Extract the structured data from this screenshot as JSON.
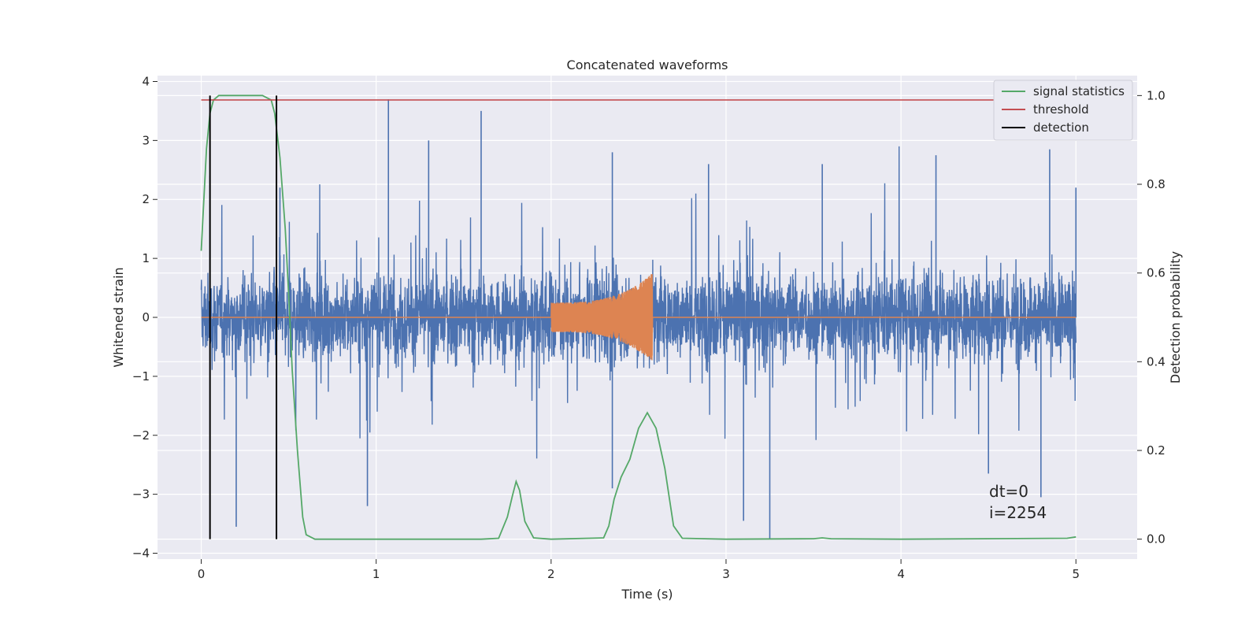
{
  "chart_data": {
    "type": "line",
    "title": "Concatenated waveforms",
    "xlabel": "Time (s)",
    "ylabel": "Whitened strain",
    "y2label": "Detection probability",
    "xlim": [
      -0.25,
      5.35
    ],
    "ylim": [
      -4.1,
      4.1
    ],
    "y2lim": [
      -0.045,
      1.045
    ],
    "xticks": [
      0,
      1,
      2,
      3,
      4,
      5
    ],
    "xtick_labels": [
      "0",
      "1",
      "2",
      "3",
      "4",
      "5"
    ],
    "yticks": [
      -4,
      -3,
      -2,
      -1,
      0,
      1,
      2,
      3,
      4
    ],
    "ytick_labels": [
      "−4",
      "−3",
      "−2",
      "−1",
      "0",
      "1",
      "2",
      "3",
      "4"
    ],
    "y2ticks": [
      0.0,
      0.2,
      0.4,
      0.6,
      0.8,
      1.0
    ],
    "y2tick_labels": [
      "0.0",
      "0.2",
      "0.4",
      "0.6",
      "0.8",
      "1.0"
    ],
    "grid": true,
    "legend_position": "top-right",
    "colors": {
      "background": "#EAEAF2",
      "grid": "#FFFFFF",
      "strain": "#4C72B0",
      "injection": "#DD8452",
      "signal_statistics": "#55A868",
      "threshold": "#C44E52",
      "detection": "#000000"
    },
    "series": [
      {
        "name": "",
        "axis": "left",
        "role": "whitened strain noise",
        "t_range": [
          0,
          5
        ],
        "typical_envelope": [
          -1.5,
          1.5
        ],
        "spikes": [
          [
            0.05,
            2.4
          ],
          [
            0.2,
            -3.55
          ],
          [
            0.45,
            2.2
          ],
          [
            0.95,
            -3.2
          ],
          [
            1.07,
            3.7
          ],
          [
            1.3,
            3.0
          ],
          [
            1.6,
            3.5
          ],
          [
            2.35,
            -2.9
          ],
          [
            2.35,
            2.8
          ],
          [
            2.9,
            2.6
          ],
          [
            3.1,
            -3.45
          ],
          [
            3.25,
            -3.75
          ],
          [
            3.55,
            2.6
          ],
          [
            4.2,
            2.75
          ],
          [
            4.5,
            -2.65
          ],
          [
            4.85,
            2.85
          ],
          [
            4.8,
            -3.05
          ],
          [
            5.0,
            2.2
          ]
        ]
      },
      {
        "name": "",
        "axis": "left",
        "role": "injected waveform",
        "t_range": [
          2.0,
          2.58
        ],
        "amplitude_start": 0.25,
        "amplitude_peak": 0.75
      },
      {
        "name": "signal statistics",
        "axis": "right",
        "x": [
          0,
          0.03,
          0.05,
          0.07,
          0.1,
          0.2,
          0.35,
          0.4,
          0.42,
          0.45,
          0.48,
          0.5,
          0.52,
          0.55,
          0.58,
          0.6,
          0.65,
          1.6,
          1.7,
          1.75,
          1.78,
          1.8,
          1.82,
          1.85,
          1.9,
          2.0,
          2.3,
          2.33,
          2.36,
          2.4,
          2.45,
          2.5,
          2.55,
          2.6,
          2.65,
          2.7,
          2.75,
          3.0,
          3.5,
          3.55,
          3.6,
          4.0,
          4.95,
          5.0
        ],
        "y": [
          0.65,
          0.88,
          0.96,
          0.99,
          1.0,
          1.0,
          1.0,
          0.99,
          0.96,
          0.86,
          0.7,
          0.55,
          0.38,
          0.2,
          0.05,
          0.01,
          0.0,
          0.0,
          0.002,
          0.05,
          0.1,
          0.13,
          0.11,
          0.04,
          0.003,
          0.0,
          0.003,
          0.03,
          0.09,
          0.14,
          0.18,
          0.25,
          0.285,
          0.25,
          0.16,
          0.03,
          0.002,
          0.0,
          0.001,
          0.003,
          0.001,
          0.0,
          0.002,
          0.005
        ]
      },
      {
        "name": "threshold",
        "axis": "right",
        "x": [
          0,
          5
        ],
        "y": [
          0.99,
          0.99
        ]
      },
      {
        "name": "detection",
        "axis": "right",
        "x": [
          0.05,
          0.43
        ],
        "y": [
          0,
          1
        ]
      }
    ],
    "annotation": {
      "lines": [
        "dt=0",
        "i=2254"
      ],
      "x": 4.5,
      "y": -3.4
    }
  }
}
